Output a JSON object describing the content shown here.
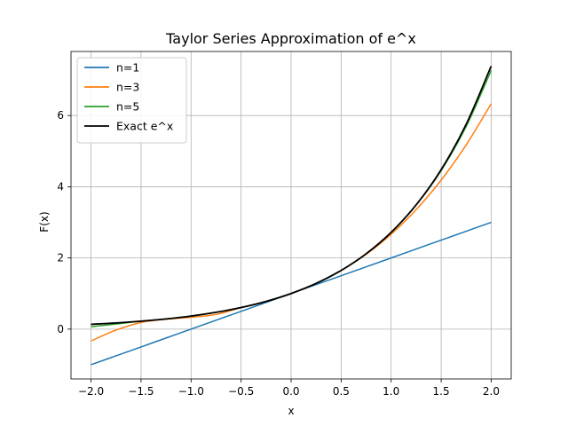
{
  "chart_data": {
    "type": "line",
    "title": "Taylor Series Approximation of e^x",
    "xlabel": "x",
    "ylabel": "F(x)",
    "xlim": [
      -2.2,
      2.2
    ],
    "ylim": [
      -1.4,
      7.8
    ],
    "xticks": [
      -2.0,
      -1.5,
      -1.0,
      -0.5,
      0.0,
      0.5,
      1.0,
      1.5,
      2.0
    ],
    "xtick_labels": [
      "−2.0",
      "−1.5",
      "−1.0",
      "−0.5",
      "0.0",
      "0.5",
      "1.0",
      "1.5",
      "2.0"
    ],
    "yticks": [
      0,
      2,
      4,
      6
    ],
    "ytick_labels": [
      "0",
      "2",
      "4",
      "6"
    ],
    "grid": true,
    "legend_position": "top-left",
    "x": [
      -2.0,
      -1.75,
      -1.5,
      -1.25,
      -1.0,
      -0.75,
      -0.5,
      -0.25,
      0.0,
      0.25,
      0.5,
      0.75,
      1.0,
      1.25,
      1.5,
      1.75,
      2.0
    ],
    "series": [
      {
        "name": "n=1",
        "color": "#1f77b4",
        "values": [
          -1.0,
          -0.75,
          -0.5,
          -0.25,
          0.0,
          0.25,
          0.5,
          0.75,
          1.0,
          1.25,
          1.5,
          1.75,
          2.0,
          2.25,
          2.5,
          2.75,
          3.0
        ]
      },
      {
        "name": "n=3",
        "color": "#ff7f0e",
        "values": [
          -0.333,
          -0.026,
          0.1875,
          0.2773,
          0.3333,
          0.4121,
          0.6042,
          0.7786,
          1.0,
          1.2839,
          1.6458,
          2.1016,
          2.6667,
          3.3568,
          4.1875,
          5.1745,
          6.3333
        ]
      },
      {
        "name": "n=5",
        "color": "#2ca02c",
        "values": [
          0.0667,
          0.1429,
          0.2234,
          0.2876,
          0.3667,
          0.4724,
          0.6065,
          0.7788,
          1.0,
          1.284,
          1.6487,
          2.1169,
          2.7167,
          3.4885,
          4.4547,
          5.6922,
          7.2667
        ]
      },
      {
        "name": "Exact e^x",
        "color": "#000000",
        "values": [
          0.1353,
          0.1738,
          0.2231,
          0.2865,
          0.3679,
          0.4724,
          0.6065,
          0.7788,
          1.0,
          1.284,
          1.6487,
          2.117,
          2.7183,
          3.4903,
          4.4817,
          5.7546,
          7.3891
        ]
      }
    ]
  }
}
